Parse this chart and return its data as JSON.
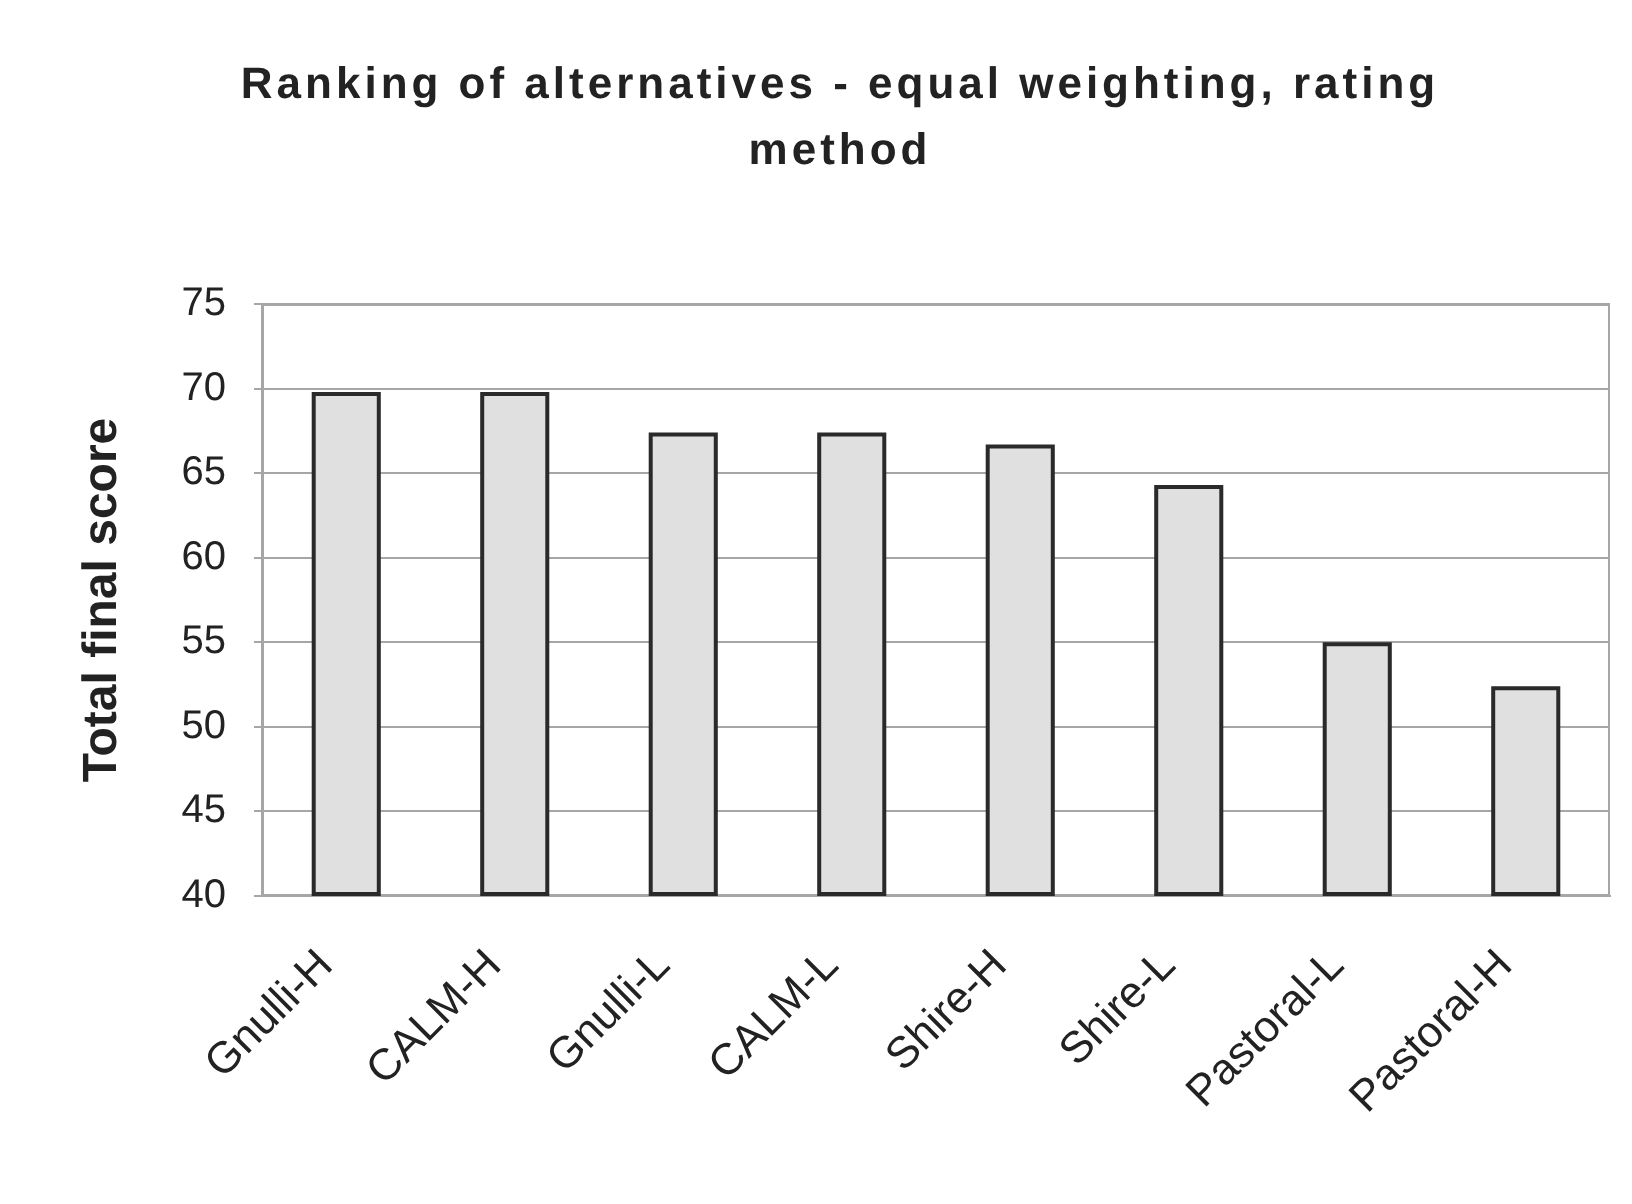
{
  "chart_data": {
    "type": "bar",
    "title": "Ranking of alternatives - equal weighting, rating method",
    "ylabel": "Total final score",
    "categories": [
      "Gnulli-H",
      "CALM-H",
      "Gnulli-L",
      "CALM-L",
      "Shire-H",
      "Shire-L",
      "Pastoral-L",
      "Pastoral-H"
    ],
    "values": [
      69.8,
      69.8,
      67.4,
      67.4,
      66.7,
      64.3,
      55.0,
      52.4
    ],
    "color": "#e0e0e0",
    "ylim": [
      40,
      75
    ],
    "yticks": [
      40,
      45,
      50,
      55,
      60,
      65,
      70,
      75
    ],
    "grid": "y"
  }
}
